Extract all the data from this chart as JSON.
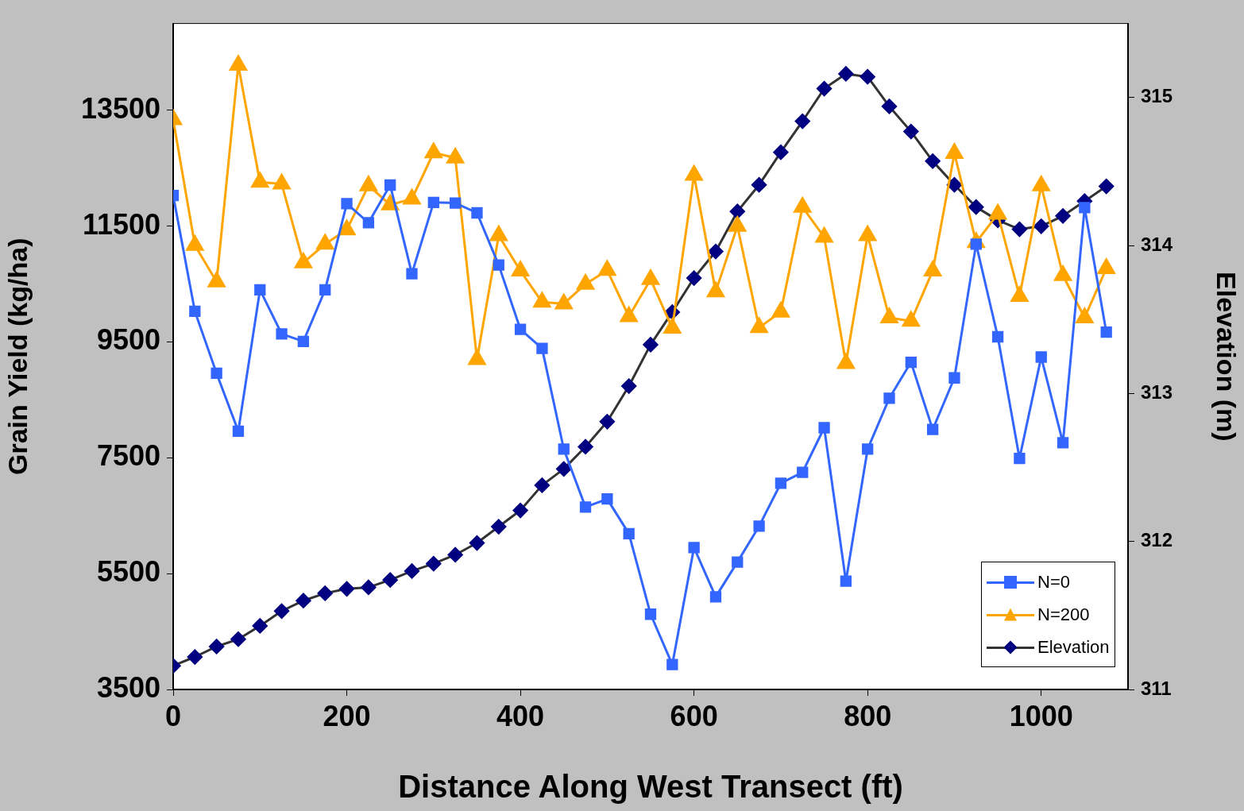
{
  "chart_data": {
    "type": "line",
    "xlabel": "Distance Along West Transect (ft)",
    "ylabel": "Grain Yield (kg/ha)",
    "y2label": "Elevation (m)",
    "x": [
      0,
      25,
      50,
      75,
      100,
      125,
      150,
      175,
      200,
      225,
      250,
      275,
      300,
      325,
      350,
      375,
      400,
      425,
      450,
      475,
      500,
      525,
      550,
      575,
      600,
      625,
      650,
      675,
      700,
      725,
      750,
      775,
      800,
      825,
      850,
      875,
      900,
      925,
      950,
      975,
      1000,
      1025,
      1050,
      1075
    ],
    "xlim": [
      0,
      1100
    ],
    "xticks": [
      0,
      200,
      400,
      600,
      800,
      1000
    ],
    "ylim": [
      3500,
      15000
    ],
    "yticks": [
      3500,
      5500,
      7500,
      9500,
      11500,
      13500
    ],
    "y2lim": [
      311,
      315.5
    ],
    "y2ticks": [
      311,
      312,
      313,
      314,
      315
    ],
    "grid": false,
    "legend": "bottom right",
    "series": [
      {
        "name": "N=0",
        "color": "#3366ff",
        "marker": "square",
        "values": [
          12030,
          10030,
          8960,
          7960,
          10400,
          9640,
          9510,
          10400,
          11890,
          11560,
          12210,
          10680,
          11910,
          11900,
          11730,
          10830,
          9720,
          9390,
          7650,
          6650,
          6790,
          6190,
          4800,
          3930,
          5950,
          5100,
          5700,
          6320,
          7060,
          7250,
          8020,
          5370,
          7650,
          8530,
          9150,
          7990,
          8880,
          11190,
          9590,
          7490,
          9240,
          7760,
          11820,
          9670
        ]
      },
      {
        "name": "N=200",
        "color": "#ffa500",
        "marker": "triangle",
        "values": [
          13340,
          11170,
          10540,
          14280,
          12260,
          12230,
          10870,
          11190,
          11440,
          12200,
          11870,
          11970,
          12770,
          12680,
          9200,
          11340,
          10730,
          10190,
          10160,
          10500,
          10740,
          9940,
          10580,
          9740,
          12380,
          10370,
          11500,
          9750,
          10020,
          11830,
          11310,
          9130,
          11340,
          9920,
          9860,
          10730,
          12760,
          11220,
          11710,
          10290,
          12200,
          10650,
          9920,
          10770
        ]
      },
      {
        "name": "Elevation",
        "color": "#000080",
        "marker": "diamond",
        "axis": "y2",
        "values": [
          311.16,
          311.22,
          311.29,
          311.34,
          311.43,
          311.53,
          311.6,
          311.65,
          311.68,
          311.69,
          311.74,
          311.8,
          311.85,
          311.91,
          311.99,
          312.1,
          312.21,
          312.38,
          312.49,
          312.64,
          312.81,
          313.05,
          313.33,
          313.55,
          313.78,
          313.96,
          314.23,
          314.41,
          314.63,
          314.84,
          315.06,
          315.16,
          315.14,
          314.94,
          314.77,
          314.57,
          314.41,
          314.26,
          314.17,
          314.11,
          314.13,
          314.2,
          314.3,
          314.4
        ]
      }
    ]
  }
}
